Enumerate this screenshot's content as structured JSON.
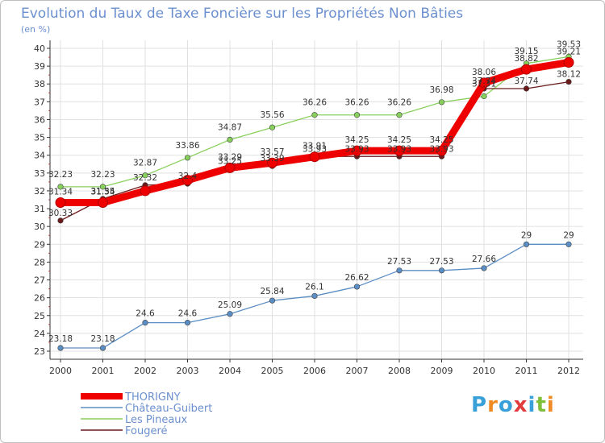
{
  "chart_data": {
    "type": "line",
    "title": "Evolution du Taux de Taxe Foncière sur les Propriétés Non Bâties",
    "subtitle": "(en %)",
    "x": [
      "2000",
      "2001",
      "2002",
      "2003",
      "2004",
      "2005",
      "2006",
      "2007",
      "2008",
      "2009",
      "2010",
      "2011",
      "2012"
    ],
    "ylim": [
      23,
      40
    ],
    "yticks": [
      23,
      24,
      25,
      26,
      27,
      28,
      29,
      30,
      31,
      32,
      33,
      34,
      35,
      36,
      37,
      38,
      39,
      40
    ],
    "grid": true,
    "legend_position": "bottom-left",
    "series": [
      {
        "name": "THORIGNY",
        "color": "#ee0000",
        "values": [
          31.34,
          31.34,
          32.0,
          32.6,
          33.29,
          33.57,
          33.91,
          34.25,
          34.25,
          34.25,
          38.06,
          38.82,
          39.21
        ],
        "labels": [
          "31.34",
          "31.34",
          "",
          "",
          "33.29",
          "33.57",
          "33.91",
          "34.25",
          "34.25",
          "34.25",
          "38.06",
          "38.82",
          "39.21"
        ]
      },
      {
        "name": "Château-Guibert",
        "color": "#5b8ec4",
        "values": [
          23.18,
          23.18,
          24.6,
          24.6,
          25.09,
          25.84,
          26.1,
          26.62,
          27.53,
          27.53,
          27.66,
          29,
          29
        ],
        "labels": [
          "23.18",
          "23.18",
          "24.6",
          "24.6",
          "25.09",
          "25.84",
          "26.1",
          "26.62",
          "27.53",
          "27.53",
          "27.66",
          "29",
          "29"
        ]
      },
      {
        "name": "Les Pineaux",
        "color": "#88d05c",
        "values": [
          32.23,
          32.23,
          32.87,
          33.86,
          34.87,
          35.56,
          36.26,
          36.26,
          36.26,
          36.98,
          37.31,
          39.15,
          39.53
        ],
        "labels": [
          "32.23",
          "32.23",
          "32.87",
          "33.86",
          "34.87",
          "35.56",
          "36.26",
          "36.26",
          "36.26",
          "36.98",
          "37.31",
          "39.15",
          "39.53"
        ]
      },
      {
        "name": "Fougeré",
        "color": "#6b1a1a",
        "values": [
          30.33,
          31.55,
          32.32,
          32.4,
          33.25,
          33.39,
          33.93,
          33.93,
          33.93,
          33.93,
          37.74,
          37.74,
          38.12
        ],
        "labels": [
          "30.33",
          "31.55",
          "32.32",
          "32.4",
          "33.25",
          "33.39",
          "33.93",
          "33.93",
          "33.93",
          "33.93",
          "37.74",
          "37.74",
          "38.12"
        ]
      }
    ]
  },
  "branding": {
    "logo_text": "Proxiti",
    "logo_colors": [
      "#3aa0d8",
      "#f08a24",
      "#3aa0d8",
      "#e23b3b",
      "#3aa0d8",
      "#7fbf3a",
      "#f08a24"
    ]
  }
}
